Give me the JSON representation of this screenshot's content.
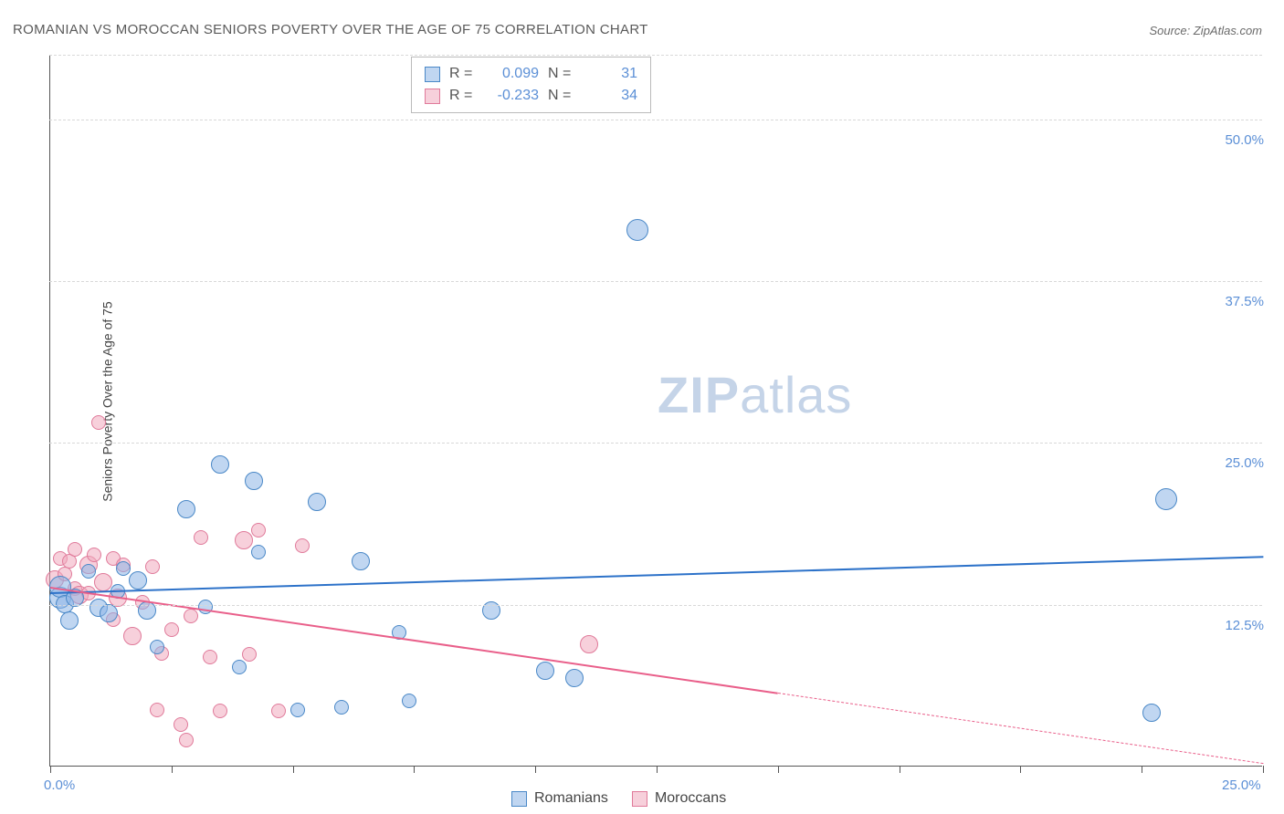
{
  "title": "ROMANIAN VS MOROCCAN SENIORS POVERTY OVER THE AGE OF 75 CORRELATION CHART",
  "source_label": "Source: ZipAtlas.com",
  "ylabel": "Seniors Poverty Over the Age of 75",
  "watermark_bold": "ZIP",
  "watermark_rest": "atlas",
  "chart": {
    "type": "scatter",
    "xlim": [
      0,
      25
    ],
    "ylim": [
      0,
      55
    ],
    "x_ticks": [
      0,
      2.5,
      5,
      7.5,
      10,
      12.5,
      15,
      17.5,
      20,
      22.5,
      25
    ],
    "x_tick_labels": {
      "0": "0.0%",
      "25": "25.0%"
    },
    "y_gridlines": [
      12.5,
      25,
      37.5,
      50,
      55
    ],
    "y_tick_labels": {
      "12.5": "12.5%",
      "25": "25.0%",
      "37.5": "37.5%",
      "50": "50.0%"
    },
    "background_color": "#ffffff",
    "grid_color": "#d8d8d8",
    "axis_color": "#555555",
    "tick_label_color": "#5b8fd6",
    "marker_radius_px_small": 7,
    "marker_radius_px_med": 9,
    "marker_radius_px_large": 11,
    "series": [
      {
        "name": "Romanians",
        "color_fill": "rgba(140,180,230,0.55)",
        "color_stroke": "#4a88c7",
        "trend_color": "#2d72c9",
        "trend": {
          "x0": 0,
          "y0": 13.5,
          "x1": 25,
          "y1": 16.3,
          "dash_from_x": null
        },
        "points": [
          {
            "x": 0.2,
            "y": 13.0,
            "r": 11
          },
          {
            "x": 0.2,
            "y": 13.8,
            "r": 11
          },
          {
            "x": 0.3,
            "y": 12.5,
            "r": 9
          },
          {
            "x": 0.4,
            "y": 11.2,
            "r": 9
          },
          {
            "x": 0.5,
            "y": 13.0,
            "r": 9
          },
          {
            "x": 0.8,
            "y": 15.0,
            "r": 7
          },
          {
            "x": 1.0,
            "y": 12.2,
            "r": 9
          },
          {
            "x": 1.2,
            "y": 11.8,
            "r": 9
          },
          {
            "x": 1.4,
            "y": 13.5,
            "r": 7
          },
          {
            "x": 1.5,
            "y": 15.2,
            "r": 7
          },
          {
            "x": 1.8,
            "y": 14.3,
            "r": 9
          },
          {
            "x": 2.0,
            "y": 12.0,
            "r": 9
          },
          {
            "x": 2.2,
            "y": 9.2,
            "r": 7
          },
          {
            "x": 2.8,
            "y": 19.8,
            "r": 9
          },
          {
            "x": 3.2,
            "y": 12.3,
            "r": 7
          },
          {
            "x": 3.5,
            "y": 23.3,
            "r": 9
          },
          {
            "x": 4.2,
            "y": 22.0,
            "r": 9
          },
          {
            "x": 4.3,
            "y": 16.5,
            "r": 7
          },
          {
            "x": 5.1,
            "y": 4.3,
            "r": 7
          },
          {
            "x": 5.5,
            "y": 20.4,
            "r": 9
          },
          {
            "x": 6.0,
            "y": 4.5,
            "r": 7
          },
          {
            "x": 6.4,
            "y": 15.8,
            "r": 9
          },
          {
            "x": 7.2,
            "y": 10.3,
            "r": 7
          },
          {
            "x": 7.4,
            "y": 5.0,
            "r": 7
          },
          {
            "x": 9.1,
            "y": 12.0,
            "r": 9
          },
          {
            "x": 10.2,
            "y": 7.3,
            "r": 9
          },
          {
            "x": 10.8,
            "y": 6.8,
            "r": 9
          },
          {
            "x": 12.1,
            "y": 41.4,
            "r": 11
          },
          {
            "x": 23.0,
            "y": 20.6,
            "r": 11
          },
          {
            "x": 22.7,
            "y": 4.1,
            "r": 9
          },
          {
            "x": 3.9,
            "y": 7.6,
            "r": 7
          }
        ]
      },
      {
        "name": "Moroccans",
        "color_fill": "rgba(240,170,190,0.55)",
        "color_stroke": "#e07a9a",
        "trend_color": "#e95f8a",
        "trend": {
          "x0": 0,
          "y0": 13.9,
          "x1": 25,
          "y1": 0.3,
          "dash_from_x": 15
        },
        "points": [
          {
            "x": 0.1,
            "y": 14.4,
            "r": 9
          },
          {
            "x": 0.2,
            "y": 16.0,
            "r": 7
          },
          {
            "x": 0.3,
            "y": 14.8,
            "r": 7
          },
          {
            "x": 0.4,
            "y": 15.8,
            "r": 7
          },
          {
            "x": 0.5,
            "y": 13.7,
            "r": 7
          },
          {
            "x": 0.5,
            "y": 16.7,
            "r": 7
          },
          {
            "x": 0.6,
            "y": 13.2,
            "r": 9
          },
          {
            "x": 0.8,
            "y": 15.5,
            "r": 9
          },
          {
            "x": 0.8,
            "y": 13.3,
            "r": 7
          },
          {
            "x": 0.9,
            "y": 16.3,
            "r": 7
          },
          {
            "x": 1.0,
            "y": 26.5,
            "r": 7
          },
          {
            "x": 1.1,
            "y": 14.2,
            "r": 9
          },
          {
            "x": 1.3,
            "y": 16.0,
            "r": 7
          },
          {
            "x": 1.3,
            "y": 11.3,
            "r": 7
          },
          {
            "x": 1.4,
            "y": 13.0,
            "r": 9
          },
          {
            "x": 1.5,
            "y": 15.5,
            "r": 7
          },
          {
            "x": 1.7,
            "y": 10.0,
            "r": 9
          },
          {
            "x": 1.9,
            "y": 12.6,
            "r": 7
          },
          {
            "x": 2.1,
            "y": 15.4,
            "r": 7
          },
          {
            "x": 2.2,
            "y": 4.3,
            "r": 7
          },
          {
            "x": 2.3,
            "y": 8.7,
            "r": 7
          },
          {
            "x": 2.5,
            "y": 10.5,
            "r": 7
          },
          {
            "x": 2.7,
            "y": 3.2,
            "r": 7
          },
          {
            "x": 2.8,
            "y": 2.0,
            "r": 7
          },
          {
            "x": 3.1,
            "y": 17.6,
            "r": 7
          },
          {
            "x": 3.3,
            "y": 8.4,
            "r": 7
          },
          {
            "x": 3.5,
            "y": 4.2,
            "r": 7
          },
          {
            "x": 4.0,
            "y": 17.4,
            "r": 9
          },
          {
            "x": 4.1,
            "y": 8.6,
            "r": 7
          },
          {
            "x": 4.3,
            "y": 18.2,
            "r": 7
          },
          {
            "x": 4.7,
            "y": 4.2,
            "r": 7
          },
          {
            "x": 5.2,
            "y": 17.0,
            "r": 7
          },
          {
            "x": 11.1,
            "y": 9.4,
            "r": 9
          },
          {
            "x": 2.9,
            "y": 11.6,
            "r": 7
          }
        ]
      }
    ]
  },
  "stats": [
    {
      "r": "0.099",
      "n": "31",
      "swatch": "blue"
    },
    {
      "r": "-0.233",
      "n": "34",
      "swatch": "pink"
    }
  ],
  "stats_labels": {
    "R": "R  =",
    "N": "N  ="
  },
  "legend": [
    {
      "label": "Romanians",
      "swatch": "blue"
    },
    {
      "label": "Moroccans",
      "swatch": "pink"
    }
  ]
}
